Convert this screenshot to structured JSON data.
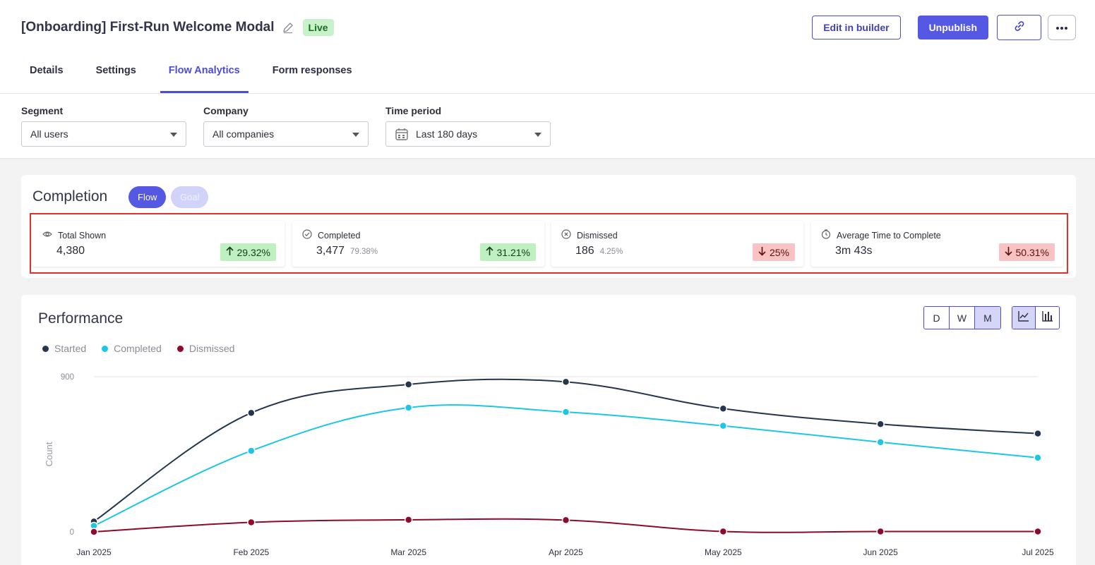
{
  "header": {
    "title": "[Onboarding] First-Run Welcome Modal",
    "status": "Live",
    "edit_label": "Edit in builder",
    "unpublish_label": "Unpublish"
  },
  "tabs": [
    {
      "label": "Details",
      "active": false
    },
    {
      "label": "Settings",
      "active": false
    },
    {
      "label": "Flow Analytics",
      "active": true
    },
    {
      "label": "Form responses",
      "active": false
    }
  ],
  "filters": {
    "segment": {
      "label": "Segment",
      "value": "All users"
    },
    "company": {
      "label": "Company",
      "value": "All companies"
    },
    "time_period": {
      "label": "Time period",
      "value": "Last 180 days"
    }
  },
  "completion": {
    "title": "Completion",
    "pills": {
      "flow": "Flow",
      "goal": "Goal"
    },
    "stats": [
      {
        "label": "Total Shown",
        "icon": "eye-icon",
        "value": "4,380",
        "pct": "",
        "delta": "29.32%",
        "direction": "up"
      },
      {
        "label": "Completed",
        "icon": "check-circle-icon",
        "value": "3,477",
        "pct": "79.38%",
        "delta": "31.21%",
        "direction": "up"
      },
      {
        "label": "Dismissed",
        "icon": "x-circle-icon",
        "value": "186",
        "pct": "4.25%",
        "delta": "25%",
        "direction": "down"
      },
      {
        "label": "Average Time to Complete",
        "icon": "timer-icon",
        "value": "3m 43s",
        "pct": "",
        "delta": "50.31%",
        "direction": "down"
      }
    ]
  },
  "performance": {
    "title": "Performance",
    "granularity": [
      {
        "label": "D",
        "active": false
      },
      {
        "label": "W",
        "active": false
      },
      {
        "label": "M",
        "active": true
      }
    ]
  },
  "chart_data": {
    "type": "line",
    "x": [
      "Jan 2025",
      "Feb 2025",
      "Mar 2025",
      "Apr 2025",
      "May 2025",
      "Jun 2025",
      "Jul 2025"
    ],
    "series": [
      {
        "name": "Started",
        "color": "#24364d",
        "values": [
          60,
          690,
          855,
          870,
          715,
          625,
          570
        ]
      },
      {
        "name": "Completed",
        "color": "#1cc6e4",
        "values": [
          35,
          470,
          720,
          695,
          615,
          520,
          430
        ]
      },
      {
        "name": "Dismissed",
        "color": "#8f0a2a",
        "values": [
          0,
          55,
          70,
          68,
          2,
          2,
          2
        ]
      }
    ],
    "ylabel": "Count",
    "yticks": [
      0,
      900
    ],
    "ylim": [
      0,
      900
    ],
    "legend": "top-left",
    "grid": true
  }
}
